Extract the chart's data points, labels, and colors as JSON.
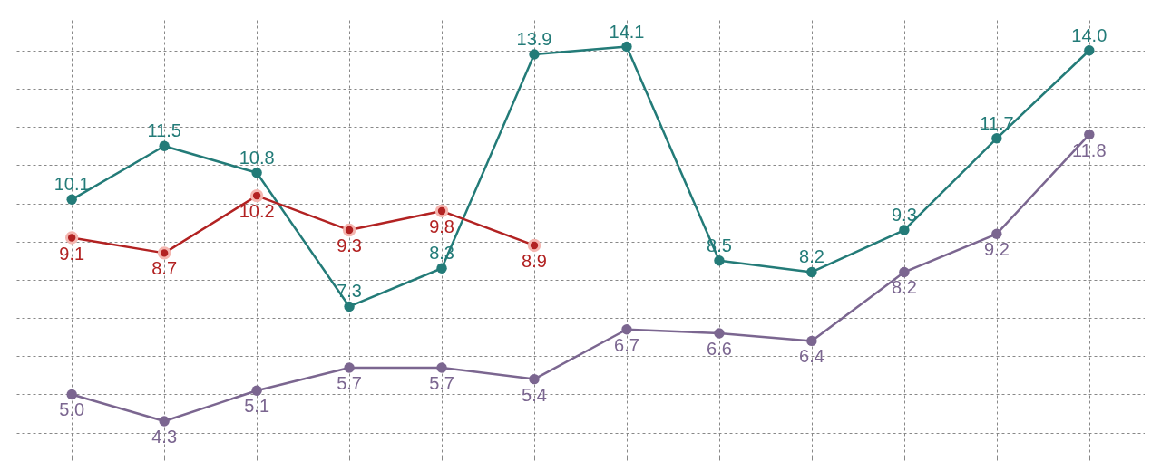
{
  "chart_data": {
    "type": "line",
    "categories": [
      null,
      null,
      null,
      null,
      null,
      null,
      null,
      null,
      null,
      null,
      null,
      null
    ],
    "series": [
      {
        "color": "#237b78",
        "values": [
          10.1,
          11.5,
          10.8,
          7.3,
          8.3,
          13.9,
          14.1,
          8.5,
          8.2,
          9.3,
          11.7,
          14.0
        ],
        "value_labels": [
          "10.1",
          "11.5",
          "10.8",
          "7.3",
          "8.3",
          "13.9",
          "14.1",
          "8.5",
          "8.2",
          "9.3",
          "11.7",
          "14.0"
        ]
      },
      {
        "color": "#b22222",
        "values": [
          9.1,
          8.7,
          10.2,
          9.3,
          9.8,
          8.9,
          null,
          null,
          null,
          null,
          null,
          null
        ],
        "value_labels": [
          "9.1",
          "8.7",
          "10.2",
          "9.3",
          "9.8",
          "8.9",
          null,
          null,
          null,
          null,
          null,
          null
        ]
      },
      {
        "color": "#7b6690",
        "values": [
          5.0,
          4.3,
          5.1,
          5.7,
          5.7,
          5.4,
          6.7,
          6.6,
          6.4,
          8.2,
          9.2,
          11.8
        ],
        "value_labels": [
          "5.0",
          "4.3",
          "5.1",
          "5.7",
          "5.7",
          "5.4",
          "6.7",
          "6.6",
          "6.4",
          "8.2",
          "9.2",
          "11.8"
        ]
      }
    ],
    "ylim": [
      3.4,
      14.8
    ],
    "yticks": [
      {
        "value": 4,
        "label": null
      },
      {
        "value": 5,
        "label": null
      },
      {
        "value": 6,
        "label": null
      },
      {
        "value": 7,
        "label": null
      },
      {
        "value": 8,
        "label": null
      },
      {
        "value": 9,
        "label": null
      },
      {
        "value": 10,
        "label": null
      },
      {
        "value": 11,
        "label": null
      },
      {
        "value": 12,
        "label": null
      },
      {
        "value": 13,
        "label": null
      },
      {
        "value": 14,
        "label": null
      }
    ],
    "grid": true,
    "marker": "circle",
    "line_style": "solid"
  }
}
